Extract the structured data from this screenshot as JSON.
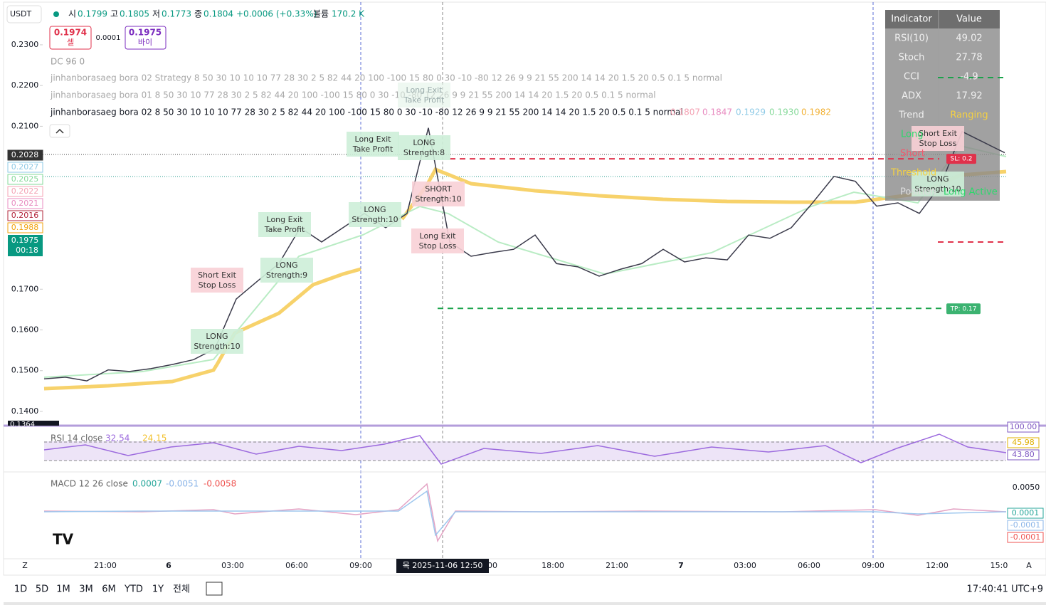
{
  "toolbar": {
    "symbol": "USDT",
    "ohlc": [
      {
        "label": "시",
        "value": "0.1799"
      },
      {
        "label": "고",
        "value": "0.1805"
      },
      {
        "label": "저",
        "value": "0.1773"
      },
      {
        "label": "종",
        "value": "0.1804"
      }
    ],
    "change": "+0.0006 (+0.33%)",
    "volume_label": "볼륨",
    "volume": "170.2 K"
  },
  "trade": {
    "sell_price": "0.1974",
    "sell": "셀",
    "spread": "0.0001",
    "buy_price": "0.1975",
    "buy": "바이"
  },
  "legend": {
    "dc": "DC 96 0",
    "strategy": "jinhanborasaeg bora 02 Strategy 8 50 30 10 10 10 77 28 30 2 5 82 44 20 100 -100 15 80 0 30 -10 -80 12 26 9 9 21 55 200 14 14 20 1.5 20 0.5 0.1 5 normal",
    "bora01": "jinhanborasaeg bora 01 8 50 30 10 77 28 30 2 5 82 44 20 100 -100 15 80 0 30 -10 -80 12 26 9 9 21 55 200 14 14 20 1.5 20 0.5 0.1 5 normal",
    "bora02": "jinhanborasaeg bora 02 8 50 30 10 10 10 77 28 30 2 5 82 44 20 100 -100 15 80 0 30 -10 -80 12 26 9 9 21 55 200 14 14 20 1.5 20 0.5 0.1 5 normal",
    "bora02_values": [
      {
        "text": "0.1807",
        "color": "#f4a3b4"
      },
      {
        "text": "0.1847",
        "color": "#e88bc0"
      },
      {
        "text": "0.1929",
        "color": "#8ecae6"
      },
      {
        "text": "0.1930",
        "color": "#86d99a"
      },
      {
        "text": "0.1982",
        "color": "#f2b134"
      }
    ]
  },
  "price_axis": {
    "ylim": [
      0.1365,
      0.241
    ],
    "ticks": [
      {
        "value": 0.23,
        "label": "0.2300"
      },
      {
        "value": 0.22,
        "label": "0.2200"
      },
      {
        "value": 0.21,
        "label": "0.2100"
      },
      {
        "value": 0.17,
        "label": "0.1700"
      },
      {
        "value": 0.16,
        "label": "0.1600"
      },
      {
        "value": 0.15,
        "label": "0.1500"
      },
      {
        "value": 0.14,
        "label": "0.1400"
      }
    ]
  },
  "price_labels": [
    {
      "text": "0.2028",
      "color": "#333333",
      "filled": true
    },
    {
      "text": "0.2027",
      "color": "#8ecae6",
      "filled": false
    },
    {
      "text": "0.2025",
      "color": "#86d99a",
      "filled": false
    },
    {
      "text": "0.2022",
      "color": "#f4a3b4",
      "filled": false
    },
    {
      "text": "0.2021",
      "color": "#e88bc0",
      "filled": false
    },
    {
      "text": "0.2016",
      "color": "#b2243a",
      "filled": false
    },
    {
      "text": "0.1988",
      "color": "#f2a20c",
      "filled": false
    }
  ],
  "last_price": {
    "text": "0.1975",
    "countdown": "00:18",
    "color": "#089981"
  },
  "bottom_price": "0.1364",
  "price_series": {
    "color": "#3a3a4a",
    "values": [
      0.148,
      0.1484,
      0.1475,
      0.1502,
      0.1498,
      0.1505,
      0.1515,
      0.1527,
      0.1554,
      0.1676,
      0.172,
      0.1763,
      0.1851,
      0.1816,
      0.1851,
      0.1886,
      0.1851,
      0.1886,
      0.2096,
      0.1816,
      0.1781,
      0.179,
      0.1798,
      0.1833,
      0.1763,
      0.1755,
      0.1732,
      0.1749,
      0.1763,
      0.1798,
      0.1767,
      0.1777,
      0.1772,
      0.1833,
      0.1825,
      0.1851,
      0.1912,
      0.1977,
      0.1965,
      0.1904,
      0.1912,
      0.1886,
      0.1956,
      0.2087,
      0.2061,
      0.2035
    ]
  },
  "signals": [
    {
      "lines": [
        "Short Exit",
        "Stop Loss"
      ],
      "color": "#f8d0d6"
    },
    {
      "lines": [
        "LONG",
        "Strength:10"
      ],
      "color": "#cdeed8"
    },
    {
      "lines": [
        "LONG",
        "Strength:9"
      ],
      "color": "#cdeed8"
    },
    {
      "lines": [
        "Long Exit",
        "Take Profit"
      ],
      "color": "#cdeed8"
    },
    {
      "lines": [
        "LONG",
        "Strength:10"
      ],
      "color": "#cdeed8"
    },
    {
      "lines": [
        "Long Exit",
        "Take Profit"
      ],
      "color": "#cdeed8"
    },
    {
      "lines": [
        "LONG",
        "Strength:8"
      ],
      "color": "#cdeed8"
    },
    {
      "lines": [
        "SHORT",
        "Strength:10"
      ],
      "color": "#f8d0d6"
    },
    {
      "lines": [
        "Long Exit",
        "Stop Loss"
      ],
      "color": "#f8d0d6"
    },
    {
      "lines": [
        "Long Exit",
        "Take Profit"
      ],
      "color": "#e3f3e8"
    },
    {
      "lines": [
        "Short Exit",
        "Stop Loss"
      ],
      "color": "#f8d0d6"
    },
    {
      "lines": [
        "LONG",
        "Strength:10"
      ],
      "color": "#cdeed8"
    }
  ],
  "levels": {
    "sl": {
      "value": 0.202,
      "label": "SL: 0.2"
    },
    "tp": {
      "value": 0.1653,
      "label": "TP: 0.17"
    }
  },
  "table": {
    "header": [
      "Indicator",
      "Value"
    ],
    "rows": [
      [
        "RSI(10)",
        "49.02"
      ],
      [
        "Stoch",
        "27.78"
      ],
      [
        "CCI",
        "-4.9"
      ],
      [
        "ADX",
        "17.92"
      ],
      [
        "Trend",
        "Ranging"
      ]
    ],
    "extra": [
      "Long",
      "Short",
      "Threshold",
      "Position",
      "Long Active"
    ]
  },
  "time_axis": [
    "Z",
    "21:00",
    "6",
    "03:00",
    "06:00",
    "09:00",
    "00",
    "18:00",
    "21:00",
    "7",
    "03:00",
    "06:00",
    "09:00",
    "12:00",
    "15:0",
    "A"
  ],
  "crosshair_time": "목 2025-11-06  12:50",
  "rsi": {
    "title": "RSI 14 close",
    "values": [
      {
        "text": "32.54",
        "color": "#9c6ade"
      },
      {
        "text": "24.15",
        "color": "#f2c12e"
      }
    ],
    "scale_labels": [
      {
        "text": "100.00",
        "color": "#7e57c2"
      },
      {
        "text": "45.98",
        "color": "#e0b000"
      },
      {
        "text": "43.80",
        "color": "#7e57c2"
      }
    ]
  },
  "macd": {
    "title": "MACD 12 26 close",
    "values": [
      {
        "text": "0.0007",
        "color": "#26a69a"
      },
      {
        "text": "-0.0051",
        "color": "#8ab4e8"
      },
      {
        "text": "-0.0058",
        "color": "#ef5350"
      }
    ],
    "axis_label": "0.0050",
    "scale_labels": [
      {
        "text": "0.0001",
        "color": "#26a69a"
      },
      {
        "text": "-0.0001",
        "color": "#8ab4e8"
      },
      {
        "text": "-0.0001",
        "color": "#ef5350"
      }
    ]
  },
  "bottom_bar": {
    "ranges": [
      "1D",
      "5D",
      "1M",
      "3M",
      "6M",
      "YTD",
      "1Y",
      "전체"
    ],
    "clock": "17:40:41 UTC+9"
  }
}
